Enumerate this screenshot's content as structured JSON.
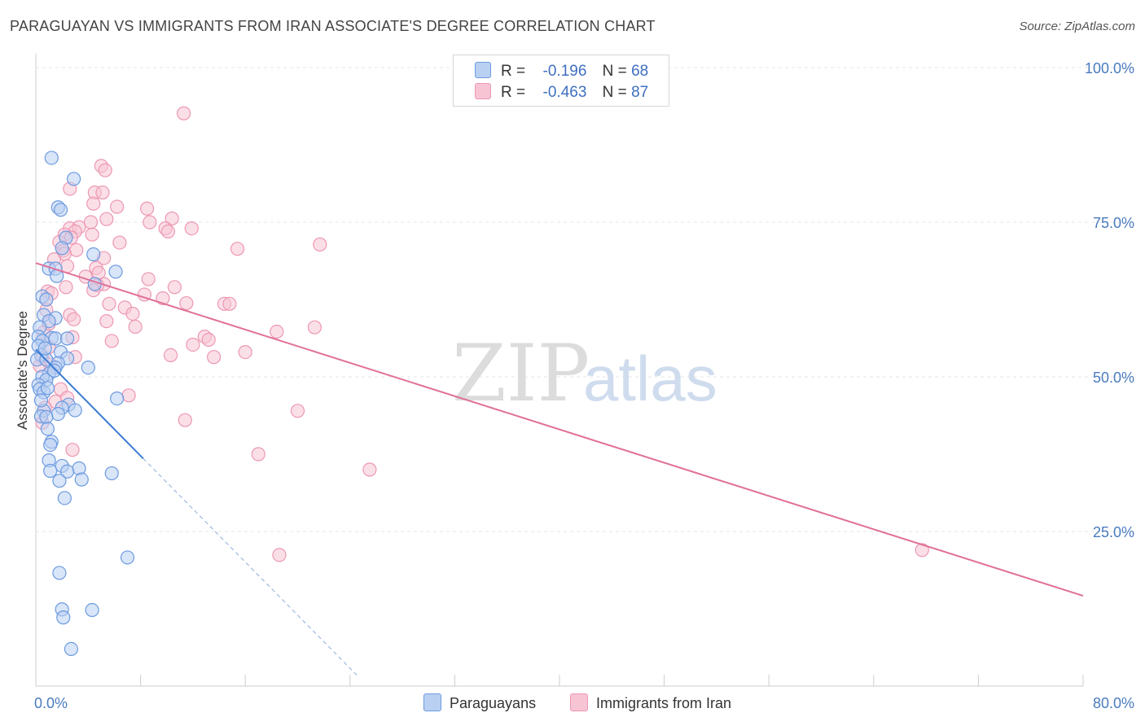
{
  "title": "PARAGUAYAN VS IMMIGRANTS FROM IRAN ASSOCIATE'S DEGREE CORRELATION CHART",
  "source": "Source: ZipAtlas.com",
  "watermark": {
    "zip": "ZIP",
    "atlas": "atlas"
  },
  "colors": {
    "blue_fill": "#b9d0f2",
    "blue_stroke": "#6b9ae0",
    "blue_line": "#3a7bd5",
    "pink_fill": "#f7c4d4",
    "pink_stroke": "#ec97b3",
    "pink_line": "#e07097",
    "grid": "#e6e6e6",
    "tick_text": "#4a7bbf"
  },
  "legend": {
    "r_label": "R =",
    "n_label": "N =",
    "rows": [
      {
        "series": "Paraguayans",
        "r": "-0.196",
        "n": "68"
      },
      {
        "series": "Immigrants from Iran",
        "r": "-0.463",
        "n": "87"
      }
    ]
  },
  "chart_data": {
    "type": "scatter",
    "title": "PARAGUAYAN VS IMMIGRANTS FROM IRAN ASSOCIATE'S DEGREE CORRELATION CHART",
    "xlabel": "",
    "ylabel": "Associate's Degree",
    "xlim": [
      0,
      80
    ],
    "ylim": [
      0,
      100
    ],
    "x_tick_labels": [
      "0.0%",
      "80.0%"
    ],
    "y_ticks": [
      25,
      50,
      75,
      100
    ],
    "y_tick_labels": [
      "25.0%",
      "50.0%",
      "75.0%",
      "100.0%"
    ],
    "grid": true,
    "legend_position": "top-center",
    "series": [
      {
        "name": "Paraguayans",
        "r": -0.196,
        "n": 68,
        "trend": {
          "x0": 0,
          "y0": 54.4,
          "x1": 8.2,
          "y1": 36.8,
          "dash_to_x": 24.5
        },
        "points": [
          [
            1.2,
            85.4
          ],
          [
            2.9,
            82.0
          ],
          [
            1.7,
            77.4
          ],
          [
            1.9,
            77.0
          ],
          [
            2.3,
            72.5
          ],
          [
            2.0,
            70.8
          ],
          [
            4.4,
            69.8
          ],
          [
            1.0,
            67.5
          ],
          [
            1.5,
            67.5
          ],
          [
            6.1,
            67.0
          ],
          [
            1.6,
            66.3
          ],
          [
            4.5,
            65.0
          ],
          [
            0.5,
            63.0
          ],
          [
            0.8,
            62.5
          ],
          [
            0.6,
            60.0
          ],
          [
            1.5,
            59.5
          ],
          [
            1.0,
            59.0
          ],
          [
            0.3,
            58.0
          ],
          [
            0.2,
            56.5
          ],
          [
            1.2,
            56.3
          ],
          [
            1.5,
            56.2
          ],
          [
            2.4,
            56.2
          ],
          [
            0.5,
            55.8
          ],
          [
            0.2,
            55.0
          ],
          [
            0.4,
            53.5
          ],
          [
            1.9,
            54.0
          ],
          [
            0.1,
            52.8
          ],
          [
            0.8,
            52.8
          ],
          [
            2.4,
            53.0
          ],
          [
            1.7,
            52.2
          ],
          [
            1.5,
            51.5
          ],
          [
            4.0,
            51.5
          ],
          [
            1.0,
            50.5
          ],
          [
            0.5,
            50.0
          ],
          [
            0.8,
            49.5
          ],
          [
            0.2,
            48.7
          ],
          [
            0.3,
            48.0
          ],
          [
            0.6,
            47.5
          ],
          [
            6.2,
            46.5
          ],
          [
            2.5,
            45.5
          ],
          [
            2.0,
            45.0
          ],
          [
            0.6,
            44.5
          ],
          [
            1.7,
            44.0
          ],
          [
            0.4,
            43.6
          ],
          [
            0.8,
            43.5
          ],
          [
            0.9,
            41.6
          ],
          [
            1.2,
            39.5
          ],
          [
            1.1,
            39.0
          ],
          [
            1.0,
            36.5
          ],
          [
            2.0,
            35.6
          ],
          [
            3.3,
            35.2
          ],
          [
            1.1,
            34.8
          ],
          [
            5.8,
            34.4
          ],
          [
            2.4,
            34.7
          ],
          [
            1.8,
            33.2
          ],
          [
            3.5,
            33.4
          ],
          [
            2.2,
            30.4
          ],
          [
            7.0,
            20.8
          ],
          [
            1.8,
            18.3
          ],
          [
            2.0,
            12.4
          ],
          [
            4.3,
            12.3
          ],
          [
            2.1,
            11.1
          ],
          [
            2.7,
            6.0
          ],
          [
            0.7,
            54.6
          ],
          [
            1.4,
            51.0
          ],
          [
            0.9,
            48.2
          ],
          [
            0.4,
            46.2
          ],
          [
            3.0,
            44.6
          ]
        ]
      },
      {
        "name": "Immigrants from Iran",
        "r": -0.463,
        "n": 87,
        "trend": {
          "x0": 0,
          "y0": 68.4,
          "x1": 80,
          "y1": 14.6
        },
        "points": [
          [
            11.3,
            92.6
          ],
          [
            5.0,
            84.1
          ],
          [
            5.3,
            83.4
          ],
          [
            2.6,
            80.4
          ],
          [
            4.5,
            79.8
          ],
          [
            5.1,
            79.8
          ],
          [
            6.2,
            77.5
          ],
          [
            5.4,
            75.5
          ],
          [
            8.5,
            77.2
          ],
          [
            10.4,
            75.6
          ],
          [
            8.7,
            75.0
          ],
          [
            2.6,
            74.0
          ],
          [
            3.3,
            74.2
          ],
          [
            3.0,
            73.5
          ],
          [
            9.9,
            74.0
          ],
          [
            11.9,
            74.0
          ],
          [
            4.2,
            75.0
          ],
          [
            2.2,
            73.0
          ],
          [
            4.3,
            73.0
          ],
          [
            10.1,
            73.5
          ],
          [
            2.7,
            72.5
          ],
          [
            1.8,
            71.8
          ],
          [
            21.7,
            71.4
          ],
          [
            15.4,
            70.7
          ],
          [
            2.1,
            70.4
          ],
          [
            3.1,
            70.5
          ],
          [
            2.2,
            69.9
          ],
          [
            5.2,
            69.2
          ],
          [
            1.4,
            69.0
          ],
          [
            2.4,
            67.9
          ],
          [
            4.6,
            67.6
          ],
          [
            4.8,
            66.8
          ],
          [
            8.6,
            65.8
          ],
          [
            5.2,
            65.0
          ],
          [
            4.7,
            64.8
          ],
          [
            2.3,
            64.5
          ],
          [
            10.6,
            64.5
          ],
          [
            4.4,
            64.0
          ],
          [
            0.9,
            63.8
          ],
          [
            1.2,
            63.5
          ],
          [
            8.3,
            63.3
          ],
          [
            0.8,
            62.5
          ],
          [
            5.6,
            61.8
          ],
          [
            11.5,
            61.9
          ],
          [
            14.4,
            61.8
          ],
          [
            14.8,
            61.8
          ],
          [
            6.8,
            61.2
          ],
          [
            0.8,
            60.8
          ],
          [
            2.6,
            60.0
          ],
          [
            2.9,
            59.3
          ],
          [
            5.4,
            59.0
          ],
          [
            7.6,
            58.1
          ],
          [
            21.3,
            58.0
          ],
          [
            18.4,
            57.3
          ],
          [
            2.8,
            56.4
          ],
          [
            12.9,
            56.5
          ],
          [
            5.8,
            55.8
          ],
          [
            12.0,
            55.2
          ],
          [
            13.2,
            56.0
          ],
          [
            1.0,
            54.8
          ],
          [
            16.0,
            54.0
          ],
          [
            10.3,
            53.5
          ],
          [
            3.0,
            53.2
          ],
          [
            0.5,
            53.0
          ],
          [
            1.1,
            52.0
          ],
          [
            7.1,
            47.0
          ],
          [
            1.5,
            46.0
          ],
          [
            0.7,
            45.0
          ],
          [
            20.0,
            44.5
          ],
          [
            11.4,
            43.0
          ],
          [
            0.5,
            42.6
          ],
          [
            2.8,
            38.2
          ],
          [
            17.0,
            37.5
          ],
          [
            25.5,
            35.0
          ],
          [
            18.6,
            21.2
          ],
          [
            67.7,
            22.0
          ],
          [
            13.6,
            53.2
          ],
          [
            3.8,
            66.2
          ],
          [
            0.6,
            57.2
          ],
          [
            1.9,
            48.0
          ],
          [
            7.4,
            60.2
          ],
          [
            1.0,
            58.6
          ],
          [
            6.4,
            71.7
          ],
          [
            9.7,
            62.7
          ],
          [
            4.4,
            78.0
          ],
          [
            0.3,
            51.8
          ],
          [
            2.4,
            46.6
          ]
        ]
      }
    ]
  }
}
